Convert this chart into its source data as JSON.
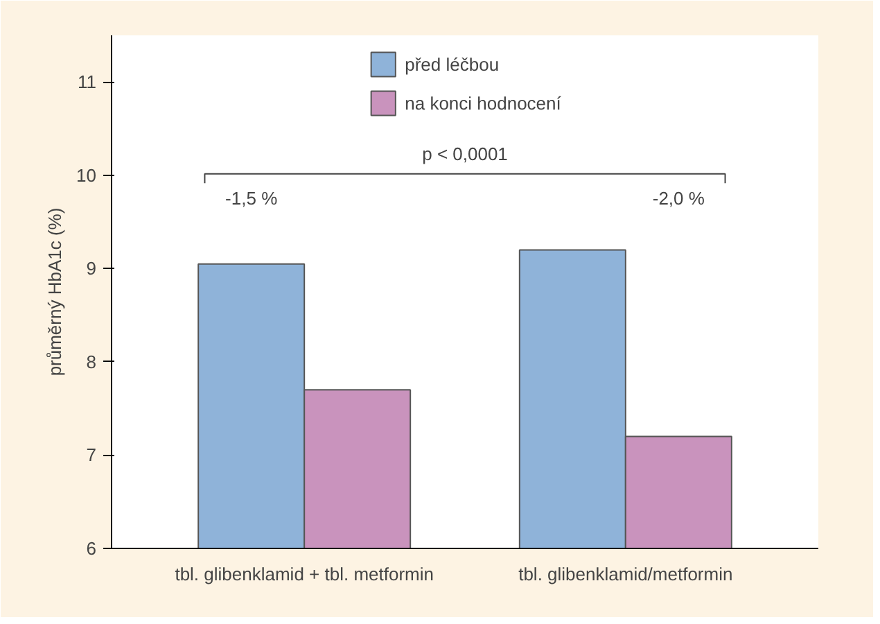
{
  "chart_data": {
    "type": "bar",
    "ylabel": "průměrný HbA1c (%)",
    "categories": [
      "tbl. glibenklamid + tbl. metformin",
      "tbl. glibenklamid/metformin"
    ],
    "series": [
      {
        "name": "před léčbou",
        "color": "#8fb3d9",
        "values": [
          9.05,
          9.2
        ]
      },
      {
        "name": "na konci hodnocení",
        "color": "#c993bd",
        "values": [
          7.7,
          7.2
        ]
      }
    ],
    "ylim": [
      6,
      11.5
    ],
    "yticks": [
      6,
      7,
      8,
      9,
      10,
      11
    ],
    "grid": false,
    "legend": "top",
    "annotations": [
      "-1,5 %",
      "-2,0 %",
      "p < 0,0001"
    ]
  }
}
